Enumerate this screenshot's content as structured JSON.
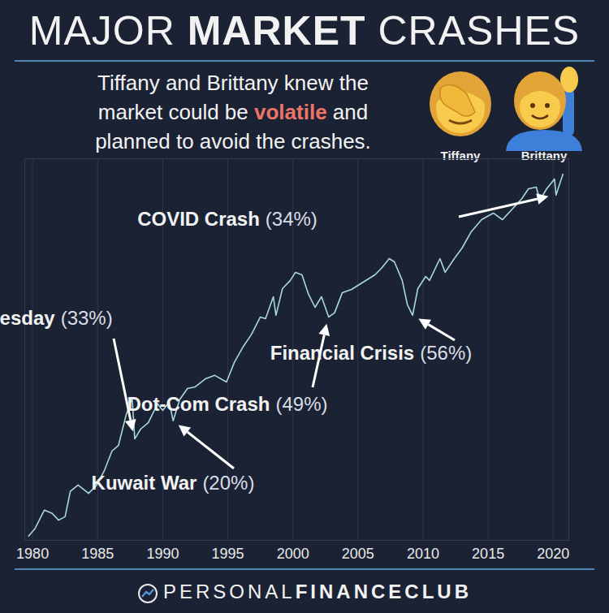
{
  "chart_data": {
    "type": "line",
    "title": "MAJOR MARKET CRASHES",
    "title_emphasis": "MARKET",
    "subtitle": "Tiffany and Brittany knew the market could be volatile and planned to avoid the crashes.",
    "subtitle_emphasis": "volatile",
    "people": [
      "Tiffany",
      "Brittany"
    ],
    "x": [
      1979.7,
      1980.2,
      1980.9,
      1981.5,
      1982.0,
      1982.5,
      1982.9,
      1983.5,
      1984.3,
      1984.9,
      1985.5,
      1986.1,
      1986.6,
      1987.2,
      1987.65,
      1987.85,
      1988.3,
      1988.9,
      1989.6,
      1990.0,
      1990.5,
      1990.8,
      1991.3,
      1991.9,
      1992.5,
      1993.3,
      1994.0,
      1994.9,
      1995.5,
      1996.2,
      1996.8,
      1997.5,
      1997.9,
      1998.5,
      1998.7,
      1999.2,
      1999.8,
      2000.2,
      2000.7,
      2001.2,
      2001.7,
      2002.2,
      2002.75,
      2003.2,
      2003.8,
      2004.5,
      2005.5,
      2006.3,
      2006.8,
      2007.4,
      2007.8,
      2008.4,
      2008.8,
      2009.2,
      2009.6,
      2010.2,
      2010.5,
      2011.3,
      2011.7,
      2012.4,
      2013.0,
      2013.7,
      2014.5,
      2015.4,
      2016.1,
      2016.8,
      2017.6,
      2018.1,
      2018.7,
      2018.98,
      2019.5,
      2020.1,
      2020.22,
      2020.5,
      2020.75
    ],
    "values": [
      100,
      108,
      129,
      125,
      117,
      121,
      155,
      165,
      152,
      164,
      189,
      230,
      243,
      329,
      386,
      259,
      285,
      304,
      365,
      342,
      371,
      309,
      380,
      424,
      431,
      467,
      482,
      452,
      547,
      641,
      717,
      853,
      840,
      1040,
      867,
      1126,
      1220,
      1321,
      1289,
      1066,
      938,
      1040,
      853,
      888,
      1083,
      1117,
      1210,
      1289,
      1373,
      1511,
      1464,
      1220,
      961,
      867,
      1126,
      1269,
      1220,
      1511,
      1321,
      1511,
      1675,
      1964,
      2212,
      2358,
      2212,
      2433,
      2720,
      2991,
      3040,
      2677,
      2991,
      3290,
      2810,
      3137,
      3451
    ],
    "color": "#a8d8dc",
    "xlim": [
      1979.4,
      2021.2
    ],
    "xticks": [
      1980,
      1985,
      1990,
      1995,
      2000,
      2005,
      2010,
      2015,
      2020
    ],
    "ylim": [
      96,
      4013
    ],
    "log": "y",
    "grid": true,
    "tick_labels": "x",
    "annotations": [
      {
        "label": "Black Tuesday",
        "x": 1987.85,
        "value": 33,
        "value_label": "(33%)"
      },
      {
        "label": "Kuwait War",
        "x": 1990.8,
        "value": 20,
        "value_label": "(20%)"
      },
      {
        "label": "Dot-Com Crash",
        "x": 2002.75,
        "value": 49,
        "value_label": "(49%)"
      },
      {
        "label": "Financial Crisis",
        "x": 2009.2,
        "value": 56,
        "value_label": "(56%)"
      },
      {
        "label": "COVID Crash",
        "x": 2020.22,
        "value": 34,
        "value_label": "(34%)"
      }
    ],
    "footer": "PERSONALFINANCECLUB",
    "footer_emphasis": "FINANCECLUB"
  }
}
